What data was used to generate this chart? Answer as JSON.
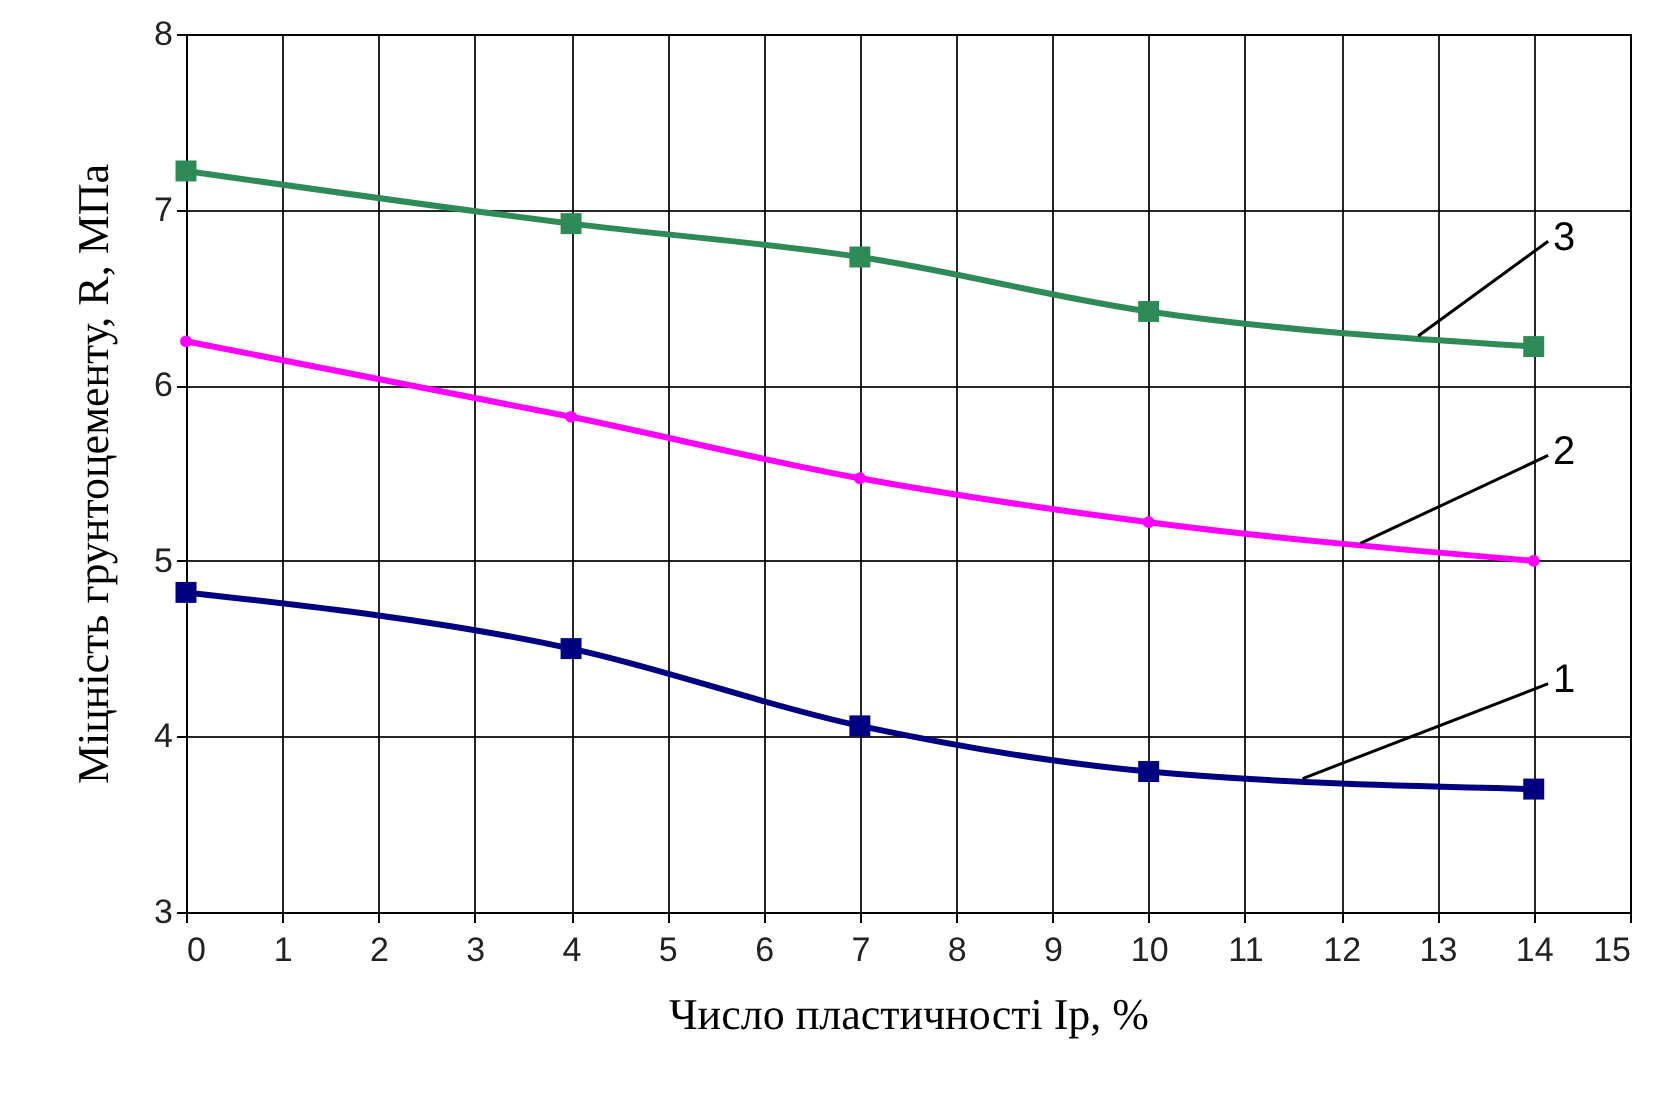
{
  "chart_data": {
    "type": "line",
    "xlabel": "Число пластичності Ip, %",
    "ylabel": "Міцність грунтоцементу, R, МПа",
    "x": [
      0,
      4,
      7,
      10,
      14
    ],
    "series": [
      {
        "name": "1",
        "color": "#000080",
        "marker": "square",
        "values": [
          4.82,
          4.5,
          4.06,
          3.8,
          3.7
        ]
      },
      {
        "name": "2",
        "color": "#ff00ff",
        "marker": "circle",
        "values": [
          6.25,
          5.82,
          5.47,
          5.22,
          5.0
        ]
      },
      {
        "name": "3",
        "color": "#2e8b57",
        "marker": "square",
        "values": [
          7.22,
          6.92,
          6.73,
          6.42,
          6.22
        ]
      }
    ],
    "xlim": [
      0,
      15
    ],
    "xticks": [
      0,
      1,
      2,
      3,
      4,
      5,
      6,
      7,
      8,
      9,
      10,
      11,
      12,
      13,
      14,
      15
    ],
    "ylim": [
      3,
      8
    ],
    "yticks": [
      3,
      4,
      5,
      6,
      7,
      8
    ],
    "grid": true
  }
}
